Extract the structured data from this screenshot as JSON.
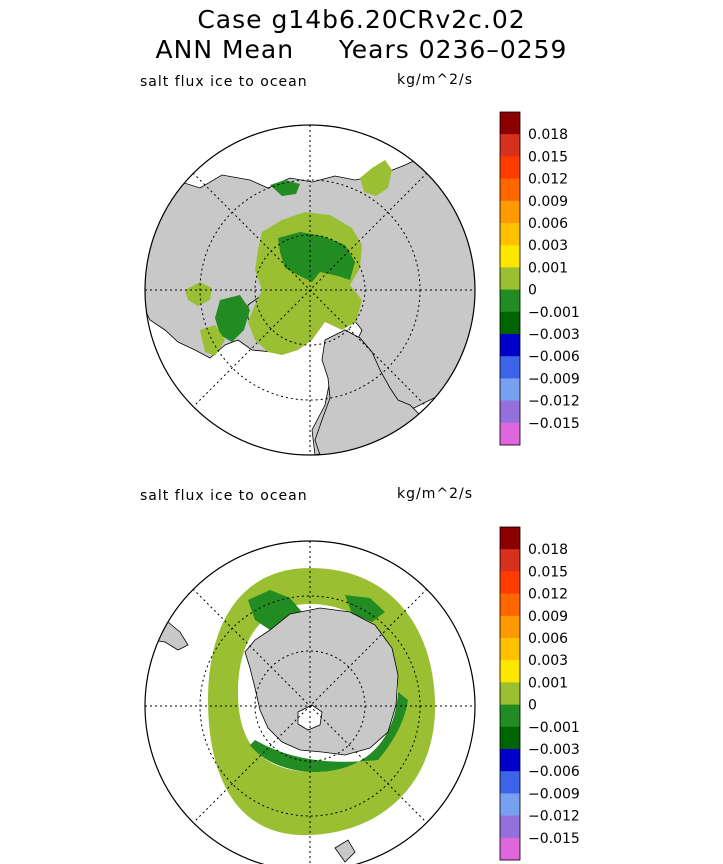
{
  "header": {
    "line1": "Case g14b6.20CRv2c.02",
    "line2": "ANN Mean     Years 0236–0259"
  },
  "colors": {
    "land": "#c8c8c8",
    "ocean": "#ffffff"
  },
  "chart_data": [
    {
      "type": "heatmap",
      "hemisphere": "north",
      "title": "salt flux ice to ocean",
      "units": "kg/m^2/s",
      "colorbar": {
        "levels": [
          "0.018",
          "0.015",
          "0.012",
          "0.009",
          "0.006",
          "0.003",
          "0.001",
          "0",
          "−0.001",
          "−0.003",
          "−0.006",
          "−0.009",
          "−0.012",
          "−0.015"
        ],
        "colors": [
          "#8b0000",
          "#d7301f",
          "#ff3c00",
          "#ff6600",
          "#ff9900",
          "#ffc000",
          "#ffe600",
          "#9abf33",
          "#228b22",
          "#006400",
          "#0000c8",
          "#3c64e6",
          "#78a0f0",
          "#9370db",
          "#e066e0"
        ]
      }
    },
    {
      "type": "heatmap",
      "hemisphere": "south",
      "title": "salt flux ice to ocean",
      "units": "kg/m^2/s",
      "colorbar": {
        "levels": [
          "0.018",
          "0.015",
          "0.012",
          "0.009",
          "0.006",
          "0.003",
          "0.001",
          "0",
          "−0.001",
          "−0.003",
          "−0.006",
          "−0.009",
          "−0.012",
          "−0.015"
        ],
        "colors": [
          "#8b0000",
          "#d7301f",
          "#ff3c00",
          "#ff6600",
          "#ff9900",
          "#ffc000",
          "#ffe600",
          "#9abf33",
          "#228b22",
          "#006400",
          "#0000c8",
          "#3c64e6",
          "#78a0f0",
          "#9370db",
          "#e066e0"
        ]
      }
    }
  ]
}
